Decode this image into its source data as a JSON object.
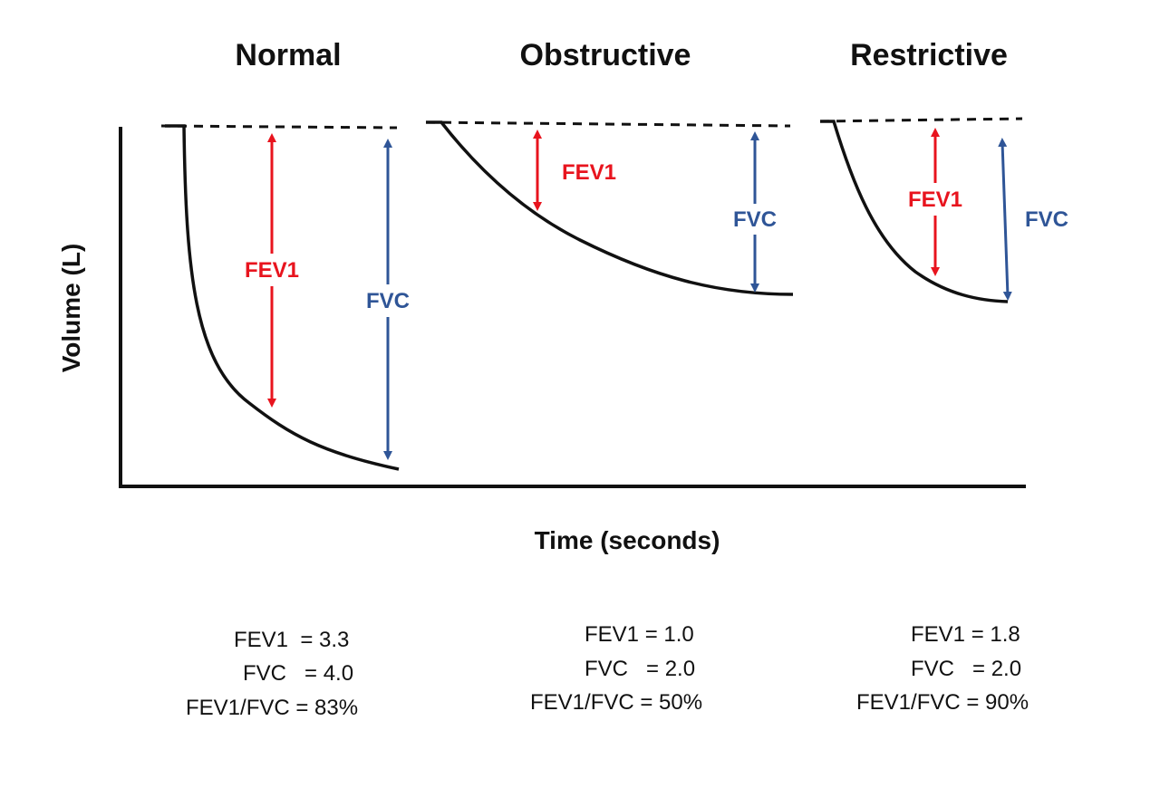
{
  "y_axis_label": "Volume (L)",
  "x_axis_label": "Time (seconds)",
  "colors": {
    "fev1": "#e8141e",
    "fvc": "#2f5597",
    "curve": "#111111"
  },
  "panels": [
    {
      "title": "Normal",
      "fev1_label": "FEV1",
      "fvc_label": "FVC",
      "stats": [
        "FEV1  = 3.3",
        "FVC   = 4.0",
        "FEV1/FVC = 83%"
      ]
    },
    {
      "title": "Obstructive",
      "fev1_label": "FEV1",
      "fvc_label": "FVC",
      "stats": [
        "FEV1 = 1.0",
        "FVC   = 2.0",
        "FEV1/FVC = 50%"
      ]
    },
    {
      "title": "Restrictive",
      "fev1_label": "FEV1",
      "fvc_label": "FVC",
      "stats": [
        "FEV1 = 1.8",
        "FVC   = 2.0",
        "FEV1/FVC = 90%"
      ]
    }
  ]
}
